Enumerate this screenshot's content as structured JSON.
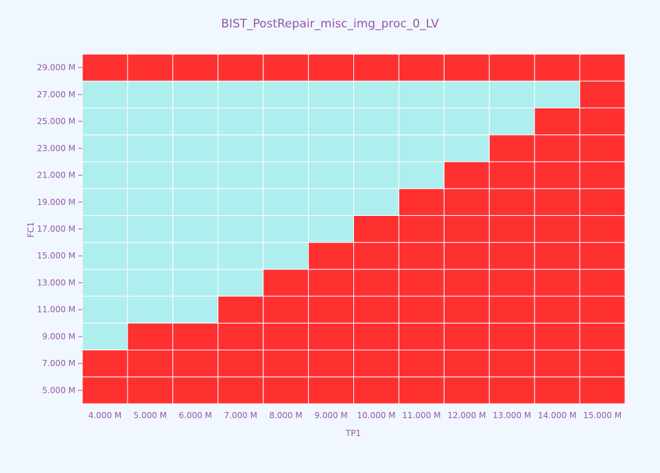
{
  "chart_data": {
    "type": "heatmap",
    "title": "BIST_PostRepair_misc_img_proc_0_LV",
    "xlabel": "TP1",
    "ylabel": "FC1",
    "x": [
      "4.000 M",
      "5.000 M",
      "6.000 M",
      "7.000 M",
      "8.000 M",
      "9.000 M",
      "10.000 M",
      "11.000 M",
      "12.000 M",
      "13.000 M",
      "14.000 M",
      "15.000 M"
    ],
    "y": [
      "5.000 M",
      "7.000 M",
      "9.000 M",
      "11.000 M",
      "13.000 M",
      "15.000 M",
      "17.000 M",
      "19.000 M",
      "21.000 M",
      "23.000 M",
      "25.000 M",
      "27.000 M",
      "29.000 M"
    ],
    "pass_color": "#afeeee",
    "fail_color": "#ff3030",
    "grid": true,
    "values": [
      [
        0,
        0,
        0,
        0,
        0,
        0,
        0,
        0,
        0,
        0,
        0,
        0
      ],
      [
        0,
        0,
        0,
        0,
        0,
        0,
        0,
        0,
        0,
        0,
        0,
        0
      ],
      [
        1,
        0,
        0,
        0,
        0,
        0,
        0,
        0,
        0,
        0,
        0,
        0
      ],
      [
        1,
        1,
        1,
        0,
        0,
        0,
        0,
        0,
        0,
        0,
        0,
        0
      ],
      [
        1,
        1,
        1,
        1,
        0,
        0,
        0,
        0,
        0,
        0,
        0,
        0
      ],
      [
        1,
        1,
        1,
        1,
        1,
        0,
        0,
        0,
        0,
        0,
        0,
        0
      ],
      [
        1,
        1,
        1,
        1,
        1,
        1,
        0,
        0,
        0,
        0,
        0,
        0
      ],
      [
        1,
        1,
        1,
        1,
        1,
        1,
        1,
        0,
        0,
        0,
        0,
        0
      ],
      [
        1,
        1,
        1,
        1,
        1,
        1,
        1,
        1,
        0,
        0,
        0,
        0
      ],
      [
        1,
        1,
        1,
        1,
        1,
        1,
        1,
        1,
        1,
        0,
        0,
        0
      ],
      [
        1,
        1,
        1,
        1,
        1,
        1,
        1,
        1,
        1,
        1,
        0,
        0
      ],
      [
        1,
        1,
        1,
        1,
        1,
        1,
        1,
        1,
        1,
        1,
        1,
        0
      ],
      [
        0,
        0,
        0,
        0,
        0,
        0,
        0,
        0,
        0,
        0,
        0,
        0
      ]
    ]
  }
}
